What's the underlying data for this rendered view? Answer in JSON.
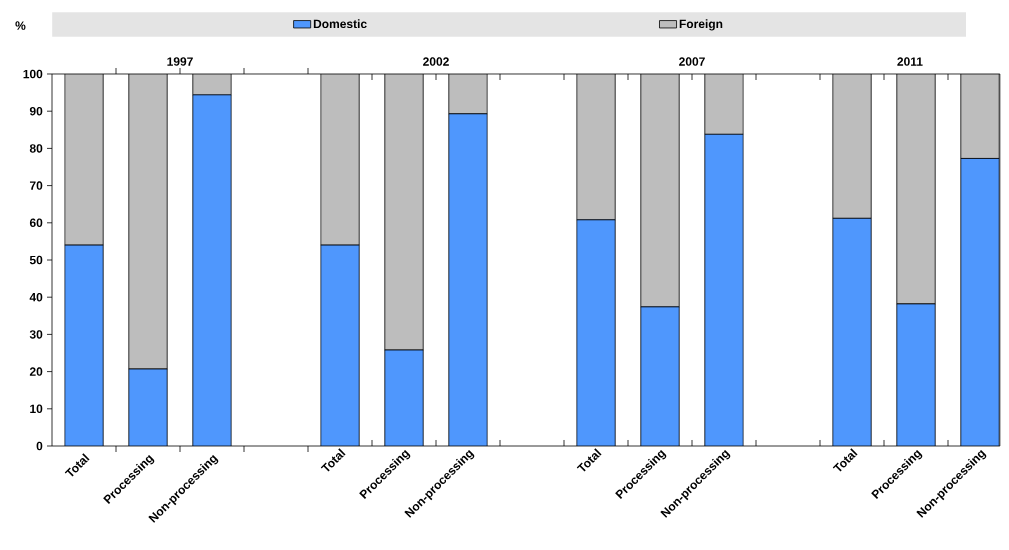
{
  "chart_data": [
    {
      "type": "bar",
      "stacked": true,
      "title": "1997",
      "ylabel": "%",
      "legend": "top",
      "categories": [
        "Total",
        "Processing",
        "Non-processing"
      ],
      "ylim": [
        0,
        100
      ],
      "yticks": [
        0,
        10,
        20,
        30,
        40,
        50,
        60,
        70,
        80,
        90,
        100
      ],
      "series": [
        {
          "name": "Domestic",
          "color": "#4f97fd",
          "values": [
            54,
            20.7,
            94.4
          ]
        },
        {
          "name": "Foreign",
          "color": "#bdbdbd",
          "values": [
            46,
            79.3,
            5.6
          ]
        }
      ]
    },
    {
      "type": "bar",
      "stacked": true,
      "title": "2002",
      "tick_labels": "x",
      "categories": [
        "Total",
        "Processing",
        "Non-processing"
      ],
      "ylim": [
        0,
        100
      ],
      "yticks": [
        0,
        10,
        20,
        30,
        40,
        50,
        60,
        70,
        80,
        90,
        100
      ],
      "series": [
        {
          "color": "#4f97fd",
          "values": [
            54,
            25.8,
            89.3
          ]
        },
        {
          "color": "#bdbdbd",
          "values": [
            46,
            74.2,
            10.7
          ]
        }
      ]
    },
    {
      "type": "bar",
      "stacked": true,
      "title": "2007",
      "tick_labels": "x",
      "categories": [
        "Total",
        "Processing",
        "Non-processing"
      ],
      "ylim": [
        0,
        100
      ],
      "yticks": [
        0,
        10,
        20,
        30,
        40,
        50,
        60,
        70,
        80,
        90,
        100
      ],
      "series": [
        {
          "color": "#4f97fd",
          "values": [
            60.8,
            37.4,
            83.8
          ]
        },
        {
          "color": "#bdbdbd",
          "values": [
            39.2,
            62.6,
            16.2
          ]
        }
      ]
    },
    {
      "type": "bar",
      "stacked": true,
      "title": "2011",
      "tick_labels": "x",
      "categories": [
        "Total",
        "Processing",
        "Non-processing"
      ],
      "ylim": [
        0,
        100
      ],
      "yticks": [
        0,
        10,
        20,
        30,
        40,
        50,
        60,
        70,
        80,
        90,
        100
      ],
      "series": [
        {
          "color": "#4f97fd",
          "values": [
            61.2,
            38.2,
            77.3
          ]
        },
        {
          "color": "#bdbdbd",
          "values": [
            38.8,
            61.8,
            22.7
          ]
        }
      ]
    }
  ]
}
